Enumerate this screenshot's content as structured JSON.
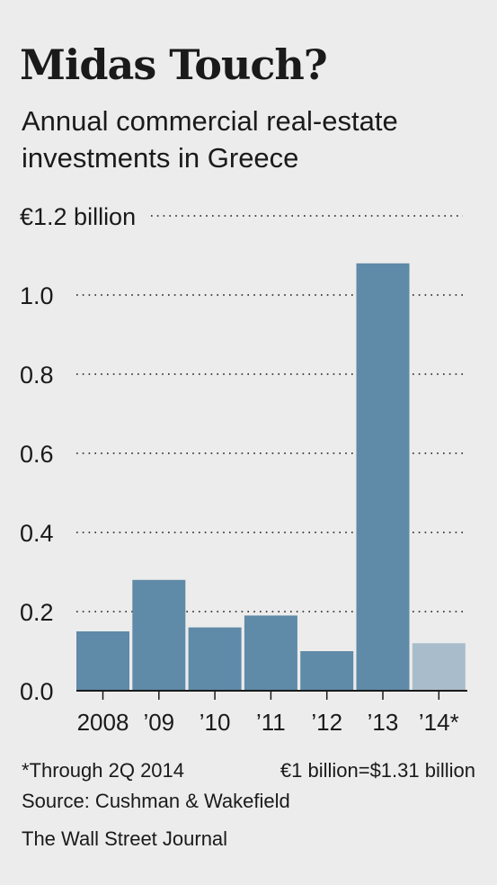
{
  "header": {
    "title": "Midas Touch?",
    "subtitle": "Annual commercial real-estate investments in Greece"
  },
  "chart_data": {
    "type": "bar",
    "title": "Midas Touch?",
    "subtitle": "Annual commercial real-estate investments in Greece",
    "xlabel": "",
    "ylabel": "",
    "categories": [
      "2008",
      "’09",
      "’10",
      "’11",
      "’12",
      "’13",
      "’14*"
    ],
    "values": [
      0.15,
      0.28,
      0.16,
      0.19,
      0.1,
      1.08,
      0.12
    ],
    "ylim": [
      0,
      1.2
    ],
    "yticks": [
      0,
      0.2,
      0.4,
      0.6,
      0.8,
      1.0,
      1.2
    ],
    "ytick_labels": [
      "0.0",
      "0.2",
      "0.4",
      "0.6",
      "0.8",
      "1.0",
      "€1.2 billion"
    ],
    "grid": "dotted horizontal",
    "colors": {
      "bar": "#5f8aa8",
      "bar_partial": "#a9bccb",
      "grid": "#333333"
    },
    "highlight": {
      "index": 6,
      "note": "*Through 2Q 2014"
    }
  },
  "footer": {
    "note": "*Through 2Q 2014",
    "conversion": "€1 billion=$1.31 billion",
    "source": "Source: Cushman & Wakefield",
    "publisher": "The Wall Street Journal"
  }
}
